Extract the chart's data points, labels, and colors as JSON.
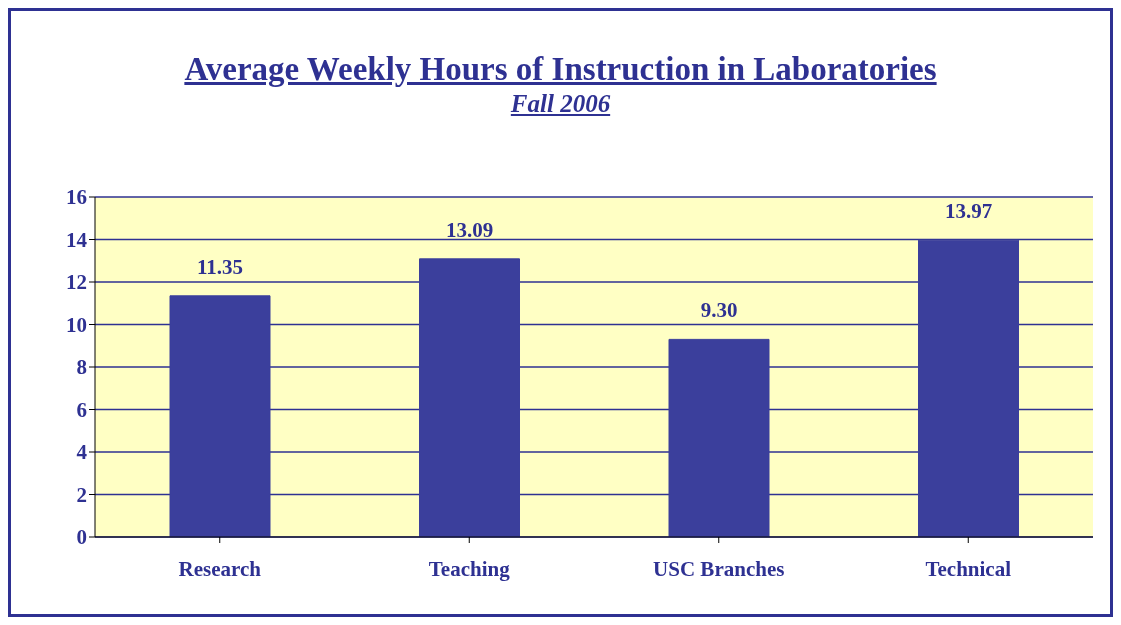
{
  "chart_data": {
    "type": "bar",
    "title": "Average Weekly Hours of Instruction in Laboratories",
    "subtitle": "Fall 2006",
    "categories": [
      "Research",
      "Teaching",
      "USC Branches",
      "Technical"
    ],
    "values": [
      11.35,
      13.09,
      9.3,
      13.97
    ],
    "value_labels": [
      "11.35",
      "13.09",
      "9.30",
      "13.97"
    ],
    "color": "#3b3f9c",
    "ylim": [
      0,
      16
    ],
    "yticks": [
      0,
      2,
      4,
      6,
      8,
      10,
      12,
      14,
      16
    ],
    "grid": "y"
  }
}
